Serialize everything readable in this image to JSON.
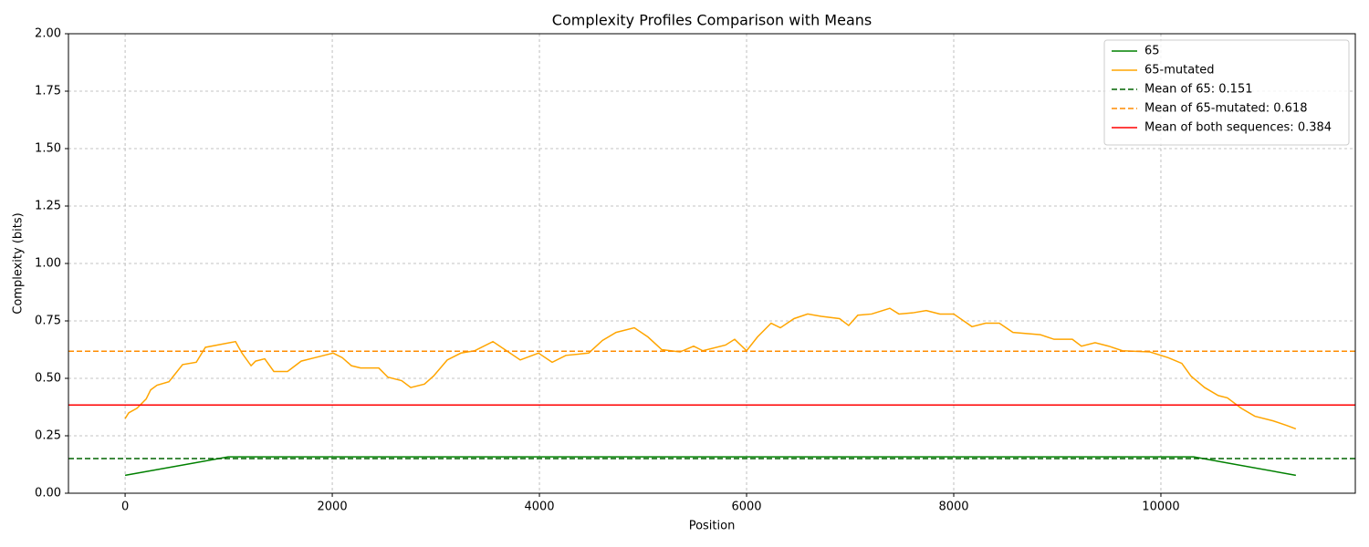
{
  "chart_data": {
    "type": "line",
    "title": "Complexity Profiles Comparison with Means",
    "xlabel": "Position",
    "ylabel": "Complexity (bits)",
    "xlim": [
      -547,
      11877
    ],
    "ylim": [
      0,
      2
    ],
    "xticks": [
      0,
      2000,
      4000,
      6000,
      8000,
      10000
    ],
    "yticks": [
      {
        "value": 0,
        "label": "0.00"
      },
      {
        "value": 0.25,
        "label": "0.25"
      },
      {
        "value": 0.5,
        "label": "0.50"
      },
      {
        "value": 0.75,
        "label": "0.75"
      },
      {
        "value": 1,
        "label": "1.00"
      },
      {
        "value": 1.25,
        "label": "1.25"
      },
      {
        "value": 1.5,
        "label": "1.50"
      },
      {
        "value": 1.75,
        "label": "1.75"
      },
      {
        "value": 2,
        "label": "2.00"
      }
    ],
    "grid": true,
    "legend": "upper right",
    "series": [
      {
        "name": "65",
        "color": "#008000",
        "x": [
          0,
          995,
          10317,
          11303
        ],
        "values": [
          0.078,
          0.158,
          0.158,
          0.078
        ]
      },
      {
        "name": "65-mutated",
        "color": "#ffa500",
        "x": [
          0,
          35,
          115,
          203,
          247,
          308,
          423,
          467,
          555,
          687,
          775,
          1066,
          1128,
          1216,
          1260,
          1348,
          1436,
          1568,
          1700,
          1833,
          2009,
          2097,
          2185,
          2273,
          2449,
          2537,
          2670,
          2758,
          2890,
          2978,
          3110,
          3242,
          3374,
          3551,
          3683,
          3815,
          3991,
          4123,
          4256,
          4476,
          4608,
          4740,
          4916,
          5048,
          5181,
          5357,
          5489,
          5577,
          5797,
          5885,
          6000,
          6105,
          6237,
          6326,
          6458,
          6590,
          6722,
          6898,
          6986,
          7074,
          7207,
          7383,
          7471,
          7603,
          7735,
          7867,
          8000,
          8176,
          8308,
          8440,
          8572,
          8836,
          8969,
          9145,
          9233,
          9365,
          9497,
          9629,
          9894,
          10070,
          10202,
          10290,
          10422,
          10554,
          10642,
          10775,
          10907,
          11083,
          11215,
          11303
        ],
        "values": [
          0.325,
          0.35,
          0.37,
          0.41,
          0.45,
          0.47,
          0.485,
          0.51,
          0.56,
          0.57,
          0.635,
          0.66,
          0.61,
          0.555,
          0.575,
          0.585,
          0.53,
          0.53,
          0.575,
          0.59,
          0.61,
          0.59,
          0.555,
          0.545,
          0.545,
          0.505,
          0.49,
          0.46,
          0.475,
          0.51,
          0.58,
          0.61,
          0.62,
          0.66,
          0.62,
          0.58,
          0.61,
          0.57,
          0.6,
          0.61,
          0.665,
          0.7,
          0.72,
          0.68,
          0.625,
          0.615,
          0.64,
          0.62,
          0.645,
          0.67,
          0.62,
          0.68,
          0.74,
          0.72,
          0.76,
          0.78,
          0.77,
          0.76,
          0.73,
          0.775,
          0.78,
          0.805,
          0.78,
          0.785,
          0.795,
          0.78,
          0.78,
          0.725,
          0.74,
          0.74,
          0.7,
          0.69,
          0.67,
          0.67,
          0.64,
          0.655,
          0.64,
          0.62,
          0.615,
          0.59,
          0.565,
          0.51,
          0.46,
          0.425,
          0.415,
          0.37,
          0.335,
          0.315,
          0.295,
          0.28
        ]
      }
    ],
    "mean_lines": [
      {
        "name": "Mean of 65: 0.151",
        "value": 0.151,
        "color": "#006400",
        "dashed": true
      },
      {
        "name": "Mean of 65-mutated: 0.618",
        "value": 0.618,
        "color": "#ff8c00",
        "dashed": true
      },
      {
        "name": "Mean of both sequences: 0.384",
        "value": 0.384,
        "color": "#ff0000",
        "dashed": false
      }
    ]
  }
}
